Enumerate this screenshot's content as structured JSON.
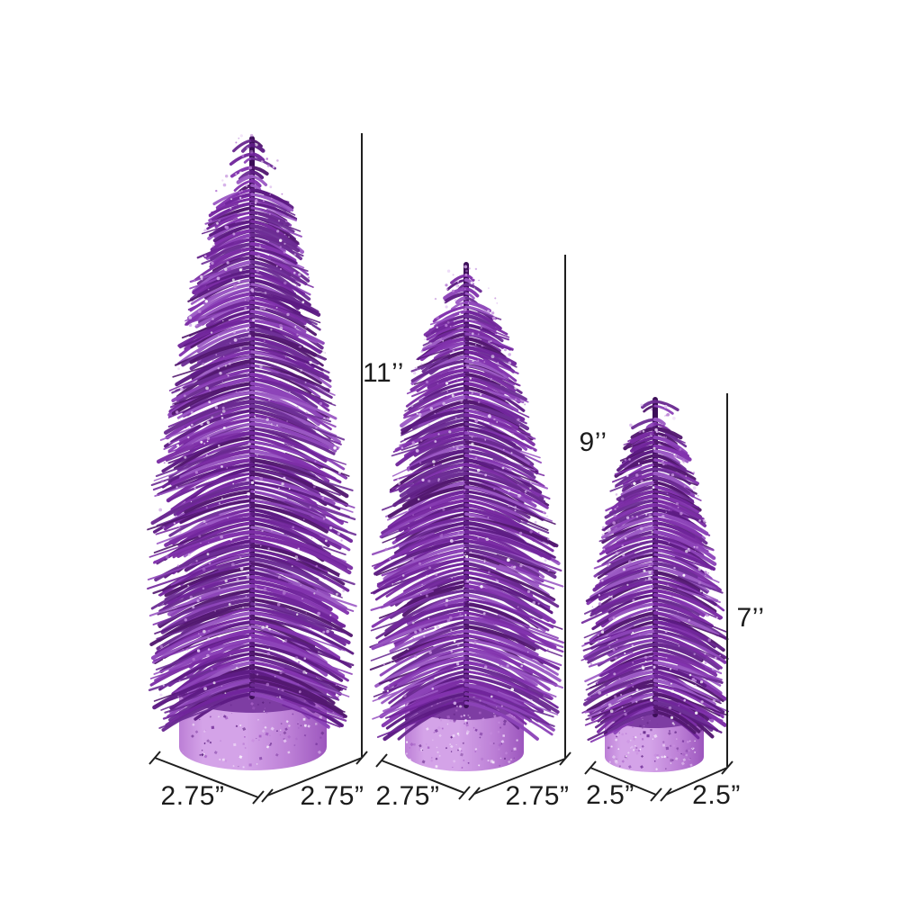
{
  "scene": {
    "description": "Three purple glitter bottle-brush oval pine trees shown in decreasing sizes with dimension annotation lines"
  },
  "colors": {
    "background": "#ffffff",
    "annotation_line": "#1f1f1f",
    "label_text": "#1c1c1c",
    "foliage_trunk": "#3c0e58",
    "foliage_palette": [
      "#5d1b83",
      "#70259b",
      "#8233ae",
      "#6d2f96",
      "#52186f",
      "#7b2da4",
      "#8d44b8",
      "#6a2a91",
      "#9b59c4"
    ],
    "sparkle_palette": [
      "#e6ccf4",
      "#ffffff",
      "#d4aee9",
      "#c08ad8",
      "#b97fd6"
    ],
    "base_fill_light": "#d4a3e8",
    "base_fill_mid": "#bc7fd6",
    "base_fill_dark": "#9c56bd",
    "base_top_fill": "#7e3da3",
    "base_sparkle_palette": [
      "#ecd2f7",
      "#f8eefc",
      "#a763c6",
      "#7c3ba1",
      "#5f2383",
      "#c98fe0"
    ]
  },
  "trees": [
    {
      "id": "tree-11-inch",
      "height_label": "11’’",
      "base_left_label": "2.75”",
      "base_right_label": "2.75”"
    },
    {
      "id": "tree-9-inch",
      "height_label": "9’’",
      "base_left_label": "2.75”",
      "base_right_label": "2.75”"
    },
    {
      "id": "tree-7-inch",
      "height_label": "7’’",
      "base_left_label": "2.5”",
      "base_right_label": "2.5”"
    }
  ]
}
